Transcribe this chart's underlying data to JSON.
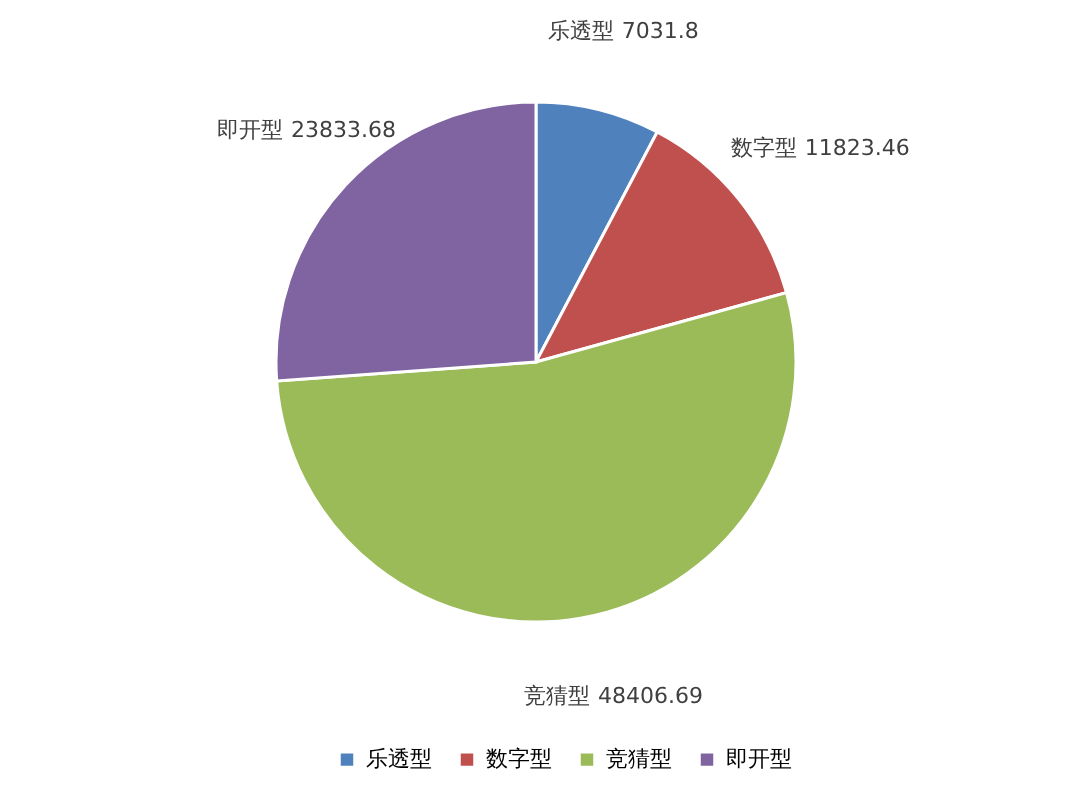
{
  "chart_data": {
    "type": "pie",
    "categories": [
      "乐透型",
      "数字型",
      "竞猜型",
      "即开型"
    ],
    "values": [
      7031.8,
      11823.46,
      48406.69,
      23833.68
    ],
    "colors": [
      "#4f81bd",
      "#c0504d",
      "#9bbb59",
      "#8064a2"
    ],
    "data_labels": true,
    "legend": "bottom"
  }
}
